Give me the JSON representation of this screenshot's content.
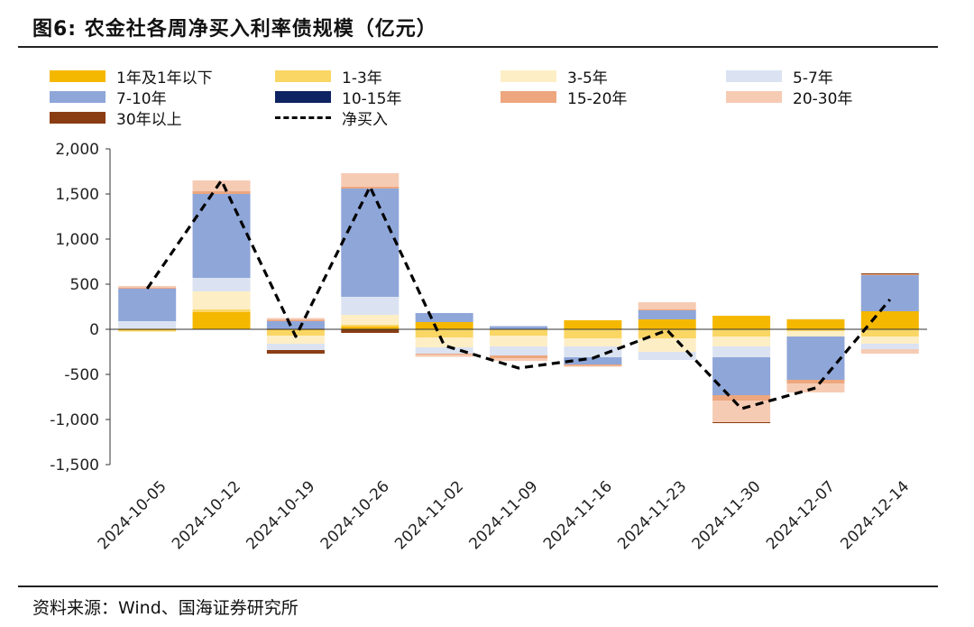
{
  "title": "图6:  农金社各周净买入利率债规模（亿元）",
  "source": "资料来源：Wind、国海证券研究所",
  "colors": {
    "y1under": "#f5b800",
    "y1to3": "#fad664",
    "y3to5": "#fdeec6",
    "y5to7": "#dbe3f2",
    "y7to10": "#8fa6d9",
    "y10to15": "#0e2361",
    "y15to20": "#eda67e",
    "y20to30": "#f6cbb4",
    "y30plus": "#8a3d13",
    "net": "#000000"
  },
  "chart_data": {
    "type": "bar",
    "stacked": true,
    "categories": [
      "2024-10-05",
      "2024-10-12",
      "2024-10-19",
      "2024-10-26",
      "2024-11-02",
      "2024-11-09",
      "2024-11-16",
      "2024-11-23",
      "2024-11-30",
      "2024-12-07",
      "2024-12-14"
    ],
    "ylim": [
      -1500,
      2000
    ],
    "yticks": [
      -1500,
      -1000,
      -500,
      0,
      500,
      1000,
      1500,
      2000
    ],
    "ytick_labels": [
      "-1,500",
      "-1,000",
      "-500",
      "0",
      "500",
      "1,000",
      "1,500",
      "2,000"
    ],
    "grid": false,
    "legend_position": "top",
    "series": [
      {
        "name": "1年及1年以下",
        "key": "y1under",
        "values": [
          -10,
          190,
          -10,
          30,
          80,
          0,
          100,
          110,
          150,
          110,
          200
        ]
      },
      {
        "name": "1-3年",
        "key": "y1to3",
        "values": [
          -15,
          30,
          -60,
          20,
          -90,
          -70,
          -100,
          -100,
          -80,
          -20,
          -80
        ]
      },
      {
        "name": "3-5年",
        "key": "y3to5",
        "values": [
          10,
          200,
          -90,
          110,
          -110,
          -120,
          -90,
          -150,
          -110,
          -60,
          -80
        ]
      },
      {
        "name": "5-7年",
        "key": "y5to7",
        "values": [
          80,
          150,
          -70,
          200,
          -70,
          -100,
          -120,
          -90,
          -120,
          5,
          -60
        ]
      },
      {
        "name": "7-10年",
        "key": "y7to10",
        "values": [
          360,
          930,
          90,
          1200,
          100,
          35,
          -80,
          100,
          -420,
          -480,
          400
        ]
      },
      {
        "name": "10-15年",
        "key": "y10to15",
        "values": [
          0,
          0,
          0,
          0,
          0,
          0,
          0,
          0,
          0,
          0,
          0
        ]
      },
      {
        "name": "15-20年",
        "key": "y15to20",
        "values": [
          10,
          30,
          15,
          20,
          -10,
          -30,
          -15,
          10,
          -60,
          -40,
          10
        ]
      },
      {
        "name": "20-30年",
        "key": "y20to30",
        "values": [
          20,
          120,
          20,
          150,
          -25,
          -30,
          -10,
          80,
          -240,
          -100,
          -50
        ]
      },
      {
        "name": "30年以上",
        "key": "y30plus",
        "values": [
          0,
          0,
          -40,
          -40,
          0,
          0,
          0,
          0,
          -10,
          0,
          10
        ]
      }
    ],
    "line": {
      "name": "净买入",
      "key": "net",
      "style": "dashed",
      "values": [
        450,
        1650,
        -80,
        1580,
        -180,
        -430,
        -320,
        -10,
        -880,
        -650,
        330
      ]
    }
  }
}
